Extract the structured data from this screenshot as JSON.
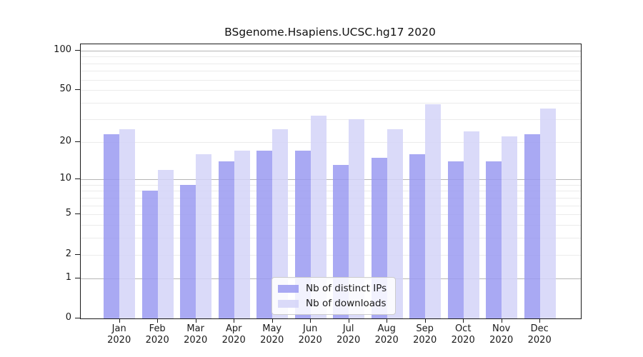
{
  "title": "BSgenome.Hsapiens.UCSC.hg17 2020",
  "chart_data": {
    "type": "bar",
    "title": "BSgenome.Hsapiens.UCSC.hg17 2020",
    "categories": [
      "Jan",
      "Feb",
      "Mar",
      "Apr",
      "May",
      "Jun",
      "Jul",
      "Aug",
      "Sep",
      "Oct",
      "Nov",
      "Dec"
    ],
    "category_year": "2020",
    "series": [
      {
        "name": "Nb of distinct IPs",
        "color": "#9a9af1",
        "values": [
          23,
          8,
          9,
          14,
          17,
          17,
          13,
          15,
          16,
          14,
          14,
          23
        ]
      },
      {
        "name": "Nb of downloads",
        "color": "#d4d4f8",
        "values": [
          25,
          12,
          16,
          17,
          25,
          32,
          30,
          25,
          39,
          24,
          22,
          36
        ]
      }
    ],
    "xlabel": "",
    "ylabel": "",
    "yscale": "log1p",
    "ylim": [
      0,
      112
    ],
    "yticks": [
      0,
      1,
      2,
      5,
      10,
      20,
      50,
      100
    ],
    "gridlines": {
      "major": [
        1,
        10,
        100
      ],
      "minor": [
        2,
        3,
        4,
        5,
        6,
        7,
        8,
        9,
        20,
        30,
        40,
        50,
        60,
        70,
        80,
        90
      ],
      "major_color": "#b5b5b5",
      "minor_color": "#ebebeb"
    },
    "legend_position": "lower-center-right",
    "grid": true
  }
}
